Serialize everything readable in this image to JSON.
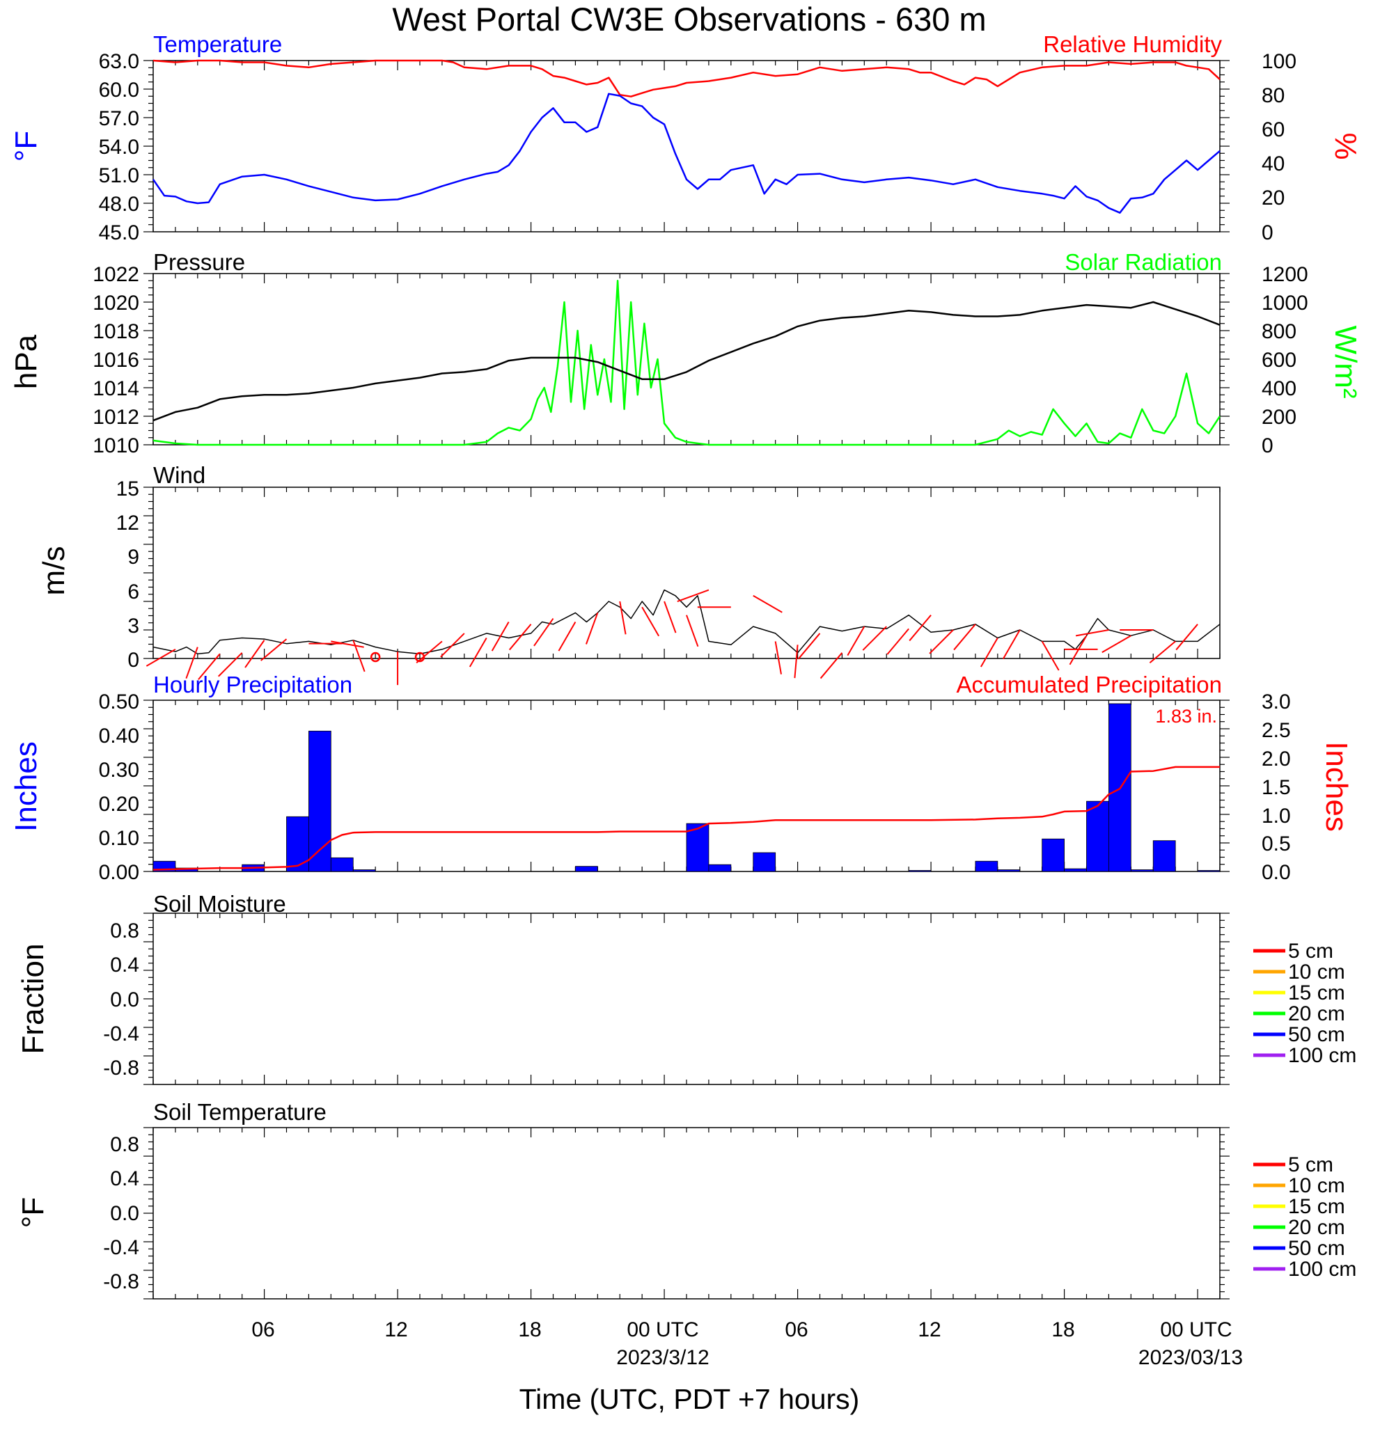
{
  "title": "West Portal CW3E Observations - 630 m",
  "x_axis": {
    "label": "Time (UTC, PDT +7 hours)",
    "range_hours": [
      0,
      48
    ],
    "ticks": [
      {
        "h": 5,
        "label": "06",
        "date": ""
      },
      {
        "h": 11,
        "label": "12",
        "date": ""
      },
      {
        "h": 17,
        "label": "18",
        "date": ""
      },
      {
        "h": 23,
        "label": "00 UTC",
        "date": "2023/3/12"
      },
      {
        "h": 29,
        "label": "06",
        "date": ""
      },
      {
        "h": 35,
        "label": "12",
        "date": ""
      },
      {
        "h": 41,
        "label": "18",
        "date": ""
      },
      {
        "h": 47,
        "label": "00 UTC",
        "date": "2023/03/13"
      }
    ]
  },
  "colors": {
    "temperature": "#0000ff",
    "humidity": "#ff0000",
    "pressure": "#000000",
    "solar": "#00ff00",
    "wind": "#000000",
    "barbs": "#ff0000",
    "hourly_precip": "#0000ff",
    "accum_precip": "#ff0000",
    "soil_depths": [
      "#ff0000",
      "#ffa500",
      "#ffff00",
      "#00ff00",
      "#0000ff",
      "#a020f0"
    ]
  },
  "panels": {
    "temp_rh": {
      "left_title": "Temperature",
      "right_title": "Relative Humidity",
      "left_ylabel": "°F",
      "right_ylabel": "%",
      "left_ticks": [
        "63.0",
        "60.0",
        "57.0",
        "54.0",
        "51.0",
        "48.0",
        "45.0"
      ],
      "right_ticks": [
        "100",
        "80",
        "60",
        "40",
        "20",
        "0"
      ]
    },
    "pressure_solar": {
      "left_title": "Pressure",
      "right_title": "Solar Radiation",
      "left_ylabel": "hPa",
      "right_ylabel": "W/m²",
      "left_ticks": [
        "1022",
        "1020",
        "1018",
        "1016",
        "1014",
        "1012",
        "1010"
      ],
      "right_ticks": [
        "1200",
        "1000",
        "800",
        "600",
        "400",
        "200",
        "0"
      ]
    },
    "wind": {
      "left_title": "Wind",
      "left_ylabel": "m/s",
      "left_ticks": [
        "15",
        "12",
        "9",
        "6",
        "3",
        "0"
      ]
    },
    "precip": {
      "left_title": "Hourly Precipitation",
      "right_title": "Accumulated Precipitation",
      "left_ylabel": "Inches",
      "right_ylabel": "Inches",
      "left_ticks": [
        "0.50",
        "0.40",
        "0.30",
        "0.20",
        "0.10",
        "0.00"
      ],
      "right_ticks": [
        "3.0",
        "2.5",
        "2.0",
        "1.5",
        "1.0",
        "0.5",
        "0.0"
      ],
      "total_label": "1.83 in."
    },
    "soil_moisture": {
      "left_title": "Soil Moisture",
      "left_ylabel": "Fraction",
      "left_ticks": [
        "0.8",
        "0.4",
        "0.0",
        "-0.4",
        "-0.8"
      ],
      "legend": [
        "5 cm",
        "10 cm",
        "15 cm",
        "20 cm",
        "50 cm",
        "100 cm"
      ]
    },
    "soil_temp": {
      "left_title": "Soil Temperature",
      "left_ylabel": "°F",
      "left_ticks": [
        "0.8",
        "0.4",
        "0.0",
        "-0.4",
        "-0.8"
      ],
      "legend": [
        "5 cm",
        "10 cm",
        "15 cm",
        "20 cm",
        "50 cm",
        "100 cm"
      ]
    }
  },
  "chart_data": [
    {
      "type": "line",
      "title": "Temperature / Relative Humidity",
      "xlabel": "Time (UTC, PDT +7 hours)",
      "xlim": [
        0,
        48
      ],
      "ylim": [
        45,
        63
      ],
      "y2lim": [
        0,
        100
      ],
      "series": [
        {
          "name": "Temperature",
          "axis": "left",
          "unit": "°F",
          "x": [
            0,
            0.5,
            1,
            1.5,
            2,
            2.5,
            3,
            4,
            5,
            6,
            7,
            8,
            9,
            10,
            11,
            12,
            13,
            14,
            15,
            15.5,
            16,
            16.5,
            17,
            17.5,
            18,
            18.5,
            19,
            19.5,
            20,
            20.5,
            21,
            21.5,
            22,
            22.5,
            23,
            23.5,
            24,
            24.5,
            25,
            25.5,
            26,
            27,
            27.5,
            28,
            28.5,
            29,
            30,
            31,
            32,
            33,
            34,
            35,
            36,
            37,
            38,
            39,
            40,
            40.5,
            41,
            41.5,
            42,
            42.5,
            43,
            43.5,
            44,
            44.5,
            45,
            45.5,
            46,
            46.5,
            47,
            47.5,
            48
          ],
          "y": [
            50.5,
            48.8,
            48.7,
            48.2,
            48.0,
            48.1,
            50.0,
            50.8,
            51.0,
            50.5,
            49.8,
            49.2,
            48.6,
            48.3,
            48.4,
            49.0,
            49.8,
            50.5,
            51.1,
            51.3,
            52.0,
            53.5,
            55.5,
            57.0,
            58.0,
            56.5,
            56.5,
            55.5,
            56.0,
            59.5,
            59.3,
            58.5,
            58.2,
            57.0,
            56.3,
            53.2,
            50.5,
            49.5,
            50.5,
            50.5,
            51.5,
            52.0,
            49.0,
            50.5,
            50.0,
            51.0,
            51.1,
            50.5,
            50.2,
            50.5,
            50.7,
            50.4,
            50.0,
            50.5,
            49.7,
            49.3,
            49.0,
            48.8,
            48.5,
            49.8,
            48.7,
            48.3,
            47.5,
            47.0,
            48.5,
            48.6,
            49.0,
            50.5,
            51.5,
            52.5,
            51.5,
            52.5,
            53.5
          ]
        },
        {
          "name": "Relative Humidity",
          "axis": "right",
          "unit": "%",
          "x": [
            0,
            1,
            2,
            3,
            4,
            5,
            6,
            7,
            8,
            9,
            10,
            11,
            12,
            13,
            13.5,
            14,
            15,
            16,
            17,
            17.5,
            18,
            18.5,
            19,
            19.5,
            20,
            20.5,
            21,
            21.5,
            22,
            22.5,
            23,
            23.5,
            24,
            25,
            26,
            27,
            28,
            29,
            30,
            31,
            32,
            33,
            34,
            34.5,
            35,
            36,
            36.5,
            37,
            37.5,
            38,
            39,
            40,
            41,
            42,
            43,
            44,
            45,
            46,
            46.5,
            47,
            47.5,
            48
          ],
          "y": [
            100,
            99,
            100,
            100,
            99,
            99,
            97,
            96,
            98,
            99,
            100,
            100,
            100,
            100,
            99,
            96,
            95,
            97,
            97,
            95,
            91,
            90,
            88,
            86,
            87,
            90,
            80,
            79,
            81,
            83,
            84,
            85,
            87,
            88,
            90,
            93,
            91,
            92,
            96,
            94,
            95,
            96,
            95,
            93,
            93,
            88,
            86,
            90,
            89,
            85,
            93,
            96,
            97,
            97,
            99,
            98,
            99,
            99,
            97,
            96,
            95,
            89
          ]
        }
      ]
    },
    {
      "type": "line",
      "title": "Pressure / Solar Radiation",
      "xlabel": "Time (UTC, PDT +7 hours)",
      "xlim": [
        0,
        48
      ],
      "ylim": [
        1010,
        1022
      ],
      "y2lim": [
        0,
        1200
      ],
      "series": [
        {
          "name": "Pressure",
          "axis": "left",
          "unit": "hPa",
          "x": [
            0,
            1,
            2,
            3,
            4,
            5,
            6,
            7,
            8,
            9,
            10,
            11,
            12,
            13,
            14,
            15,
            16,
            17,
            18,
            19,
            20,
            21,
            22,
            23,
            24,
            25,
            26,
            27,
            28,
            29,
            30,
            31,
            32,
            33,
            34,
            35,
            36,
            37,
            38,
            39,
            40,
            41,
            42,
            43,
            44,
            45,
            46,
            47,
            48
          ],
          "y": [
            1011.7,
            1012.3,
            1012.6,
            1013.2,
            1013.4,
            1013.5,
            1013.5,
            1013.6,
            1013.8,
            1014.0,
            1014.3,
            1014.5,
            1014.7,
            1015.0,
            1015.1,
            1015.3,
            1015.9,
            1016.1,
            1016.1,
            1016.1,
            1015.8,
            1015.2,
            1014.6,
            1014.6,
            1015.1,
            1015.9,
            1016.5,
            1017.1,
            1017.6,
            1018.3,
            1018.7,
            1018.9,
            1019.0,
            1019.2,
            1019.4,
            1019.3,
            1019.1,
            1019.0,
            1019.0,
            1019.1,
            1019.4,
            1019.6,
            1019.8,
            1019.7,
            1019.6,
            1020.0,
            1019.5,
            1019.0,
            1018.4
          ]
        },
        {
          "name": "Solar Radiation",
          "axis": "right",
          "unit": "W/m²",
          "x": [
            0,
            1,
            2,
            5,
            10,
            13,
            14,
            15,
            15.5,
            16,
            16.5,
            17,
            17.3,
            17.6,
            17.9,
            18.2,
            18.5,
            18.8,
            19.1,
            19.4,
            19.7,
            20,
            20.3,
            20.6,
            20.9,
            21.2,
            21.5,
            21.8,
            22.1,
            22.4,
            22.7,
            23,
            23.5,
            24,
            25,
            30,
            35,
            37,
            38,
            38.5,
            39,
            39.5,
            40,
            40.5,
            41,
            41.5,
            42,
            42.5,
            43,
            43.5,
            44,
            44.5,
            45,
            45.5,
            46,
            46.5,
            47,
            47.5,
            48
          ],
          "y": [
            30,
            10,
            0,
            0,
            0,
            0,
            0,
            20,
            80,
            120,
            100,
            180,
            320,
            400,
            230,
            550,
            1000,
            300,
            800,
            250,
            700,
            350,
            600,
            300,
            1150,
            250,
            1000,
            350,
            850,
            400,
            600,
            150,
            50,
            20,
            0,
            0,
            0,
            0,
            40,
            100,
            60,
            90,
            70,
            250,
            150,
            60,
            150,
            20,
            10,
            80,
            50,
            250,
            100,
            80,
            200,
            500,
            150,
            80,
            200
          ]
        }
      ]
    },
    {
      "type": "line",
      "title": "Wind",
      "xlabel": "Time (UTC, PDT +7 hours)",
      "xlim": [
        0,
        48
      ],
      "ylim": [
        0,
        15
      ],
      "series": [
        {
          "name": "Wind",
          "unit": "m/s",
          "x": [
            0,
            0.5,
            1,
            1.5,
            2,
            2.5,
            3,
            4,
            5,
            6,
            7,
            8,
            9,
            10,
            11,
            12,
            13,
            14,
            15,
            16,
            17,
            17.5,
            18,
            18.5,
            19,
            19.5,
            20,
            20.5,
            21,
            21.5,
            22,
            22.5,
            23,
            23.5,
            24,
            24.5,
            25,
            26,
            27,
            28,
            29,
            30,
            31,
            32,
            33,
            34,
            35,
            36,
            37,
            38,
            39,
            40,
            41,
            41.5,
            42,
            42.5,
            43,
            44,
            45,
            46,
            47,
            48
          ],
          "y": [
            1.0,
            0.8,
            0.6,
            1.0,
            0.4,
            0.5,
            1.6,
            1.8,
            1.7,
            1.3,
            1.5,
            1.2,
            1.6,
            1.0,
            0.6,
            0.4,
            0.8,
            1.5,
            2.2,
            1.8,
            2.2,
            3.2,
            3.0,
            3.5,
            4.0,
            3.2,
            4.0,
            5.0,
            4.5,
            3.5,
            5.0,
            3.8,
            6.0,
            5.5,
            4.5,
            5.5,
            1.5,
            1.2,
            2.8,
            2.2,
            0.5,
            2.8,
            2.4,
            2.8,
            2.6,
            3.8,
            2.3,
            2.5,
            3.0,
            1.8,
            2.5,
            1.5,
            1.5,
            0.8,
            2.0,
            3.5,
            2.5,
            2.0,
            2.5,
            1.5,
            1.5,
            3.0
          ]
        }
      ],
      "barbs_x": [
        1,
        2,
        3,
        4,
        5,
        6,
        7,
        8,
        9,
        10,
        11,
        12,
        13,
        14,
        15,
        16,
        17,
        18,
        19,
        20,
        21,
        22,
        23,
        24,
        25,
        26,
        27,
        28,
        29,
        30,
        31,
        32,
        33,
        34,
        35,
        36,
        37,
        38,
        39,
        40,
        41,
        42,
        43,
        44,
        45,
        46,
        47
      ]
    },
    {
      "type": "bar",
      "title": "Hourly / Accumulated Precipitation",
      "xlabel": "Time (UTC, PDT +7 hours)",
      "xlim": [
        0,
        48
      ],
      "ylim": [
        0,
        0.5
      ],
      "y2lim": [
        0,
        3
      ],
      "series": [
        {
          "name": "Hourly Precipitation",
          "axis": "left",
          "unit": "Inches",
          "x": [
            0,
            1,
            4,
            6,
            7,
            8,
            9,
            19,
            24,
            25,
            27,
            34,
            37,
            38,
            40,
            41,
            42,
            43,
            44,
            45,
            47
          ],
          "y": [
            0.03,
            0.01,
            0.02,
            0.16,
            0.41,
            0.04,
            0.005,
            0.015,
            0.14,
            0.02,
            0.055,
            0.003,
            0.03,
            0.005,
            0.095,
            0.008,
            0.205,
            0.49,
            0.005,
            0.09,
            0.003
          ]
        },
        {
          "name": "Accumulated Precipitation",
          "axis": "right",
          "unit": "Inches",
          "x": [
            0,
            1,
            2,
            3,
            4,
            5,
            6,
            6.5,
            7,
            7.5,
            8,
            8.5,
            9,
            10,
            15,
            20,
            21,
            24,
            24.5,
            25,
            26,
            27,
            28,
            30,
            35,
            37,
            38,
            39,
            40,
            40.5,
            41,
            42,
            42.5,
            43,
            43.5,
            44,
            45,
            46,
            47,
            48
          ],
          "y": [
            0.03,
            0.04,
            0.05,
            0.06,
            0.06,
            0.07,
            0.08,
            0.1,
            0.2,
            0.38,
            0.55,
            0.64,
            0.68,
            0.69,
            0.69,
            0.69,
            0.7,
            0.7,
            0.75,
            0.84,
            0.85,
            0.87,
            0.9,
            0.9,
            0.9,
            0.91,
            0.93,
            0.94,
            0.96,
            1.0,
            1.05,
            1.06,
            1.15,
            1.35,
            1.45,
            1.75,
            1.76,
            1.83,
            1.83,
            1.83
          ]
        }
      ]
    },
    {
      "type": "line",
      "title": "Soil Moisture",
      "xlabel": "Time (UTC, PDT +7 hours)",
      "xlim": [
        0,
        48
      ],
      "ylim": [
        -1,
        1
      ],
      "series": [
        {
          "name": "5 cm",
          "y": []
        },
        {
          "name": "10 cm",
          "y": []
        },
        {
          "name": "15 cm",
          "y": []
        },
        {
          "name": "20 cm",
          "y": []
        },
        {
          "name": "50 cm",
          "y": []
        },
        {
          "name": "100 cm",
          "y": []
        }
      ]
    },
    {
      "type": "line",
      "title": "Soil Temperature",
      "xlabel": "Time (UTC, PDT +7 hours)",
      "xlim": [
        0,
        48
      ],
      "ylim": [
        -1,
        1
      ],
      "series": [
        {
          "name": "5 cm",
          "y": []
        },
        {
          "name": "10 cm",
          "y": []
        },
        {
          "name": "15 cm",
          "y": []
        },
        {
          "name": "20 cm",
          "y": []
        },
        {
          "name": "50 cm",
          "y": []
        },
        {
          "name": "100 cm",
          "y": []
        }
      ]
    }
  ]
}
